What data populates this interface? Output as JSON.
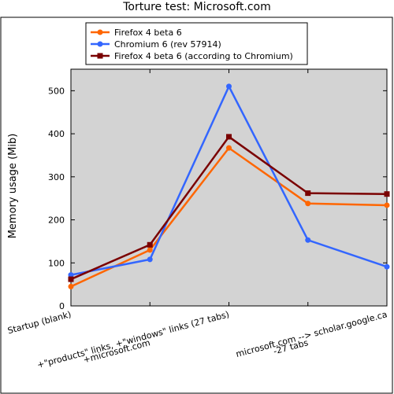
{
  "chart_data": {
    "type": "line",
    "title": "Torture test: Microsoft.com",
    "xlabel": "",
    "ylabel": "Memory usage (Mib)",
    "ylim": [
      0,
      550
    ],
    "yticks": [
      0,
      100,
      200,
      300,
      400,
      500
    ],
    "categories": [
      "Startup (blank)",
      "+microsoft.com",
      "+\"products\" links, +\"windows\" links (27 tabs)",
      "-27 tabs",
      "microsoft.com --> scholar.google.ca"
    ],
    "grid": false,
    "legend_position": "top-left",
    "series": [
      {
        "name": "Firefox 4 beta 6",
        "color": "#ff6600",
        "marker": "circle",
        "values": [
          45,
          130,
          367,
          238,
          234
        ]
      },
      {
        "name": "Chromium 6 (rev 57914)",
        "color": "#3366ff",
        "marker": "circle",
        "values": [
          72,
          108,
          510,
          153,
          91
        ]
      },
      {
        "name": "Firefox 4 beta 6 (according to Chromium)",
        "color": "#7a0000",
        "marker": "square",
        "values": [
          62,
          142,
          393,
          262,
          260
        ]
      }
    ]
  }
}
